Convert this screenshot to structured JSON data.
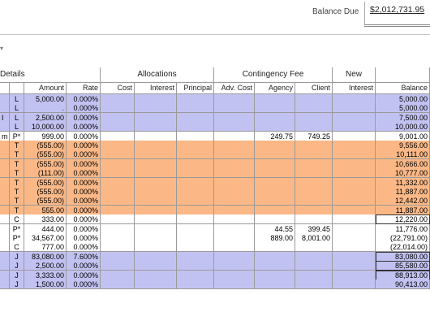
{
  "header": {
    "balance_label": "Balance Due",
    "balance_value": "$2,012,731.95"
  },
  "dropdown_caret": "▾",
  "group_headers": {
    "details": "Details",
    "allocations": "Allocations",
    "contingency": "Contingency Fee",
    "new": "New"
  },
  "columns": {
    "type": "",
    "amount": "Amount",
    "rate": "Rate",
    "cost": "Cost",
    "interest": "Interest",
    "principal": "Principal",
    "adv_cost": "Adv. Cost",
    "agency": "Agency",
    "client": "Client",
    "new_interest": "Interest",
    "balance": "Balance"
  },
  "rows": [
    {
      "pre": "",
      "type": "L",
      "amount": "5,000.00",
      "rate": "0.000%",
      "agency": "",
      "client": "",
      "balance": "5,000.00",
      "color": "blue"
    },
    {
      "pre": "",
      "type": "L",
      "amount": ".",
      "rate": "0.000%",
      "agency": "",
      "client": "",
      "balance": "5,000.00",
      "color": "blue"
    },
    {
      "pre": "I",
      "type": "L",
      "amount": "2,500.00",
      "rate": "0.000%",
      "agency": "",
      "client": "",
      "balance": "7,500.00",
      "color": "blue"
    },
    {
      "pre": "",
      "type": "L",
      "amount": "10,000.00",
      "rate": "0.000%",
      "agency": "",
      "client": "",
      "balance": "10,000.00",
      "color": "blue"
    },
    {
      "pre": "m",
      "type": "P*",
      "amount": "999.00",
      "rate": "0.000%",
      "agency": "249.75",
      "client": "749.25",
      "balance": "9,001.00",
      "color": "white"
    },
    {
      "pre": "",
      "type": "T",
      "amount": "(555.00)",
      "rate": "0.000%",
      "agency": "",
      "client": "",
      "balance": "9,556.00",
      "color": "orange"
    },
    {
      "pre": "",
      "type": "T",
      "amount": "(555.00)",
      "rate": "0.000%",
      "agency": "",
      "client": "",
      "balance": "10,111.00",
      "color": "orange"
    },
    {
      "pre": "",
      "type": "T",
      "amount": "(555.00)",
      "rate": "0.000%",
      "agency": "",
      "client": "",
      "balance": "10,666.00",
      "color": "orange"
    },
    {
      "pre": "",
      "type": "T",
      "amount": "(111.00)",
      "rate": "0.000%",
      "agency": "",
      "client": "",
      "balance": "10,777.00",
      "color": "orange"
    },
    {
      "pre": "",
      "type": "T",
      "amount": "(555.00)",
      "rate": "0.000%",
      "agency": "",
      "client": "",
      "balance": "11,332.00",
      "color": "orange"
    },
    {
      "pre": "",
      "type": "T",
      "amount": "(555.00)",
      "rate": "0.000%",
      "agency": "",
      "client": "",
      "balance": "11,887.00",
      "color": "orange"
    },
    {
      "pre": "",
      "type": "T",
      "amount": "(555.00)",
      "rate": "0.000%",
      "agency": "",
      "client": "",
      "balance": "12,442.00",
      "color": "orange"
    },
    {
      "pre": "",
      "type": "T",
      "amount": "555.00",
      "rate": "0.000%",
      "agency": "",
      "client": "",
      "balance": "11,887.00",
      "color": "orange"
    },
    {
      "pre": "",
      "type": "C",
      "amount": "333.00",
      "rate": "0.000%",
      "agency": "",
      "client": "",
      "balance": "12,220.00",
      "color": "white"
    },
    {
      "pre": "",
      "type": "P*",
      "amount": "444.00",
      "rate": "0.000%",
      "agency": "44.55",
      "client": "399.45",
      "balance": "11,776.00",
      "color": "white"
    },
    {
      "pre": "",
      "type": "P*",
      "amount": "34,567.00",
      "rate": "0.000%",
      "agency": "889.00",
      "client": "8,001.00",
      "balance": "(22,791.00)",
      "color": "white"
    },
    {
      "pre": "",
      "type": "C",
      "amount": "777.00",
      "rate": "0.000%",
      "agency": "",
      "client": "",
      "balance": "(22,014.00)",
      "color": "white"
    },
    {
      "pre": "",
      "type": "J",
      "amount": "83,080.00",
      "rate": "7.600%",
      "agency": "",
      "client": "",
      "balance": "83,080.00",
      "color": "blue"
    },
    {
      "pre": "",
      "type": "J",
      "amount": "2,500.00",
      "rate": "0.000%",
      "agency": "",
      "client": "",
      "balance": "85,580.00",
      "color": "blue"
    },
    {
      "pre": "",
      "type": "J",
      "amount": "3,333.00",
      "rate": "0.000%",
      "agency": "",
      "client": "",
      "balance": "88,913.00",
      "color": "blue"
    },
    {
      "pre": "",
      "type": "J",
      "amount": "1,500.00",
      "rate": "0.000%",
      "agency": "",
      "client": "",
      "balance": "90,413.00",
      "color": "blue"
    }
  ],
  "colors": {
    "blue": "#c2c2f2",
    "orange": "#fbb886",
    "white": "#ffffff",
    "grid_line": "#9a9a9a"
  }
}
